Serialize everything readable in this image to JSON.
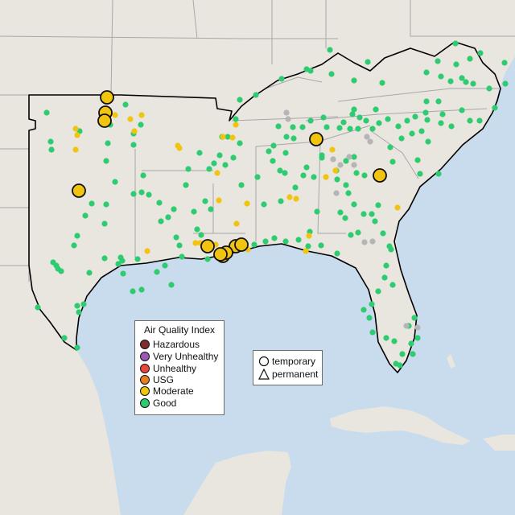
{
  "legend": {
    "title": "Air Quality Index",
    "items": [
      {
        "label": "Hazardous",
        "color": "#7e2d2d"
      },
      {
        "label": "Very Unhealthy",
        "color": "#9b59b6"
      },
      {
        "label": "Unhealthy",
        "color": "#e8473a"
      },
      {
        "label": "USG",
        "color": "#e67e22"
      },
      {
        "label": "Moderate",
        "color": "#f1c40f"
      },
      {
        "label": "Good",
        "color": "#2ecc71"
      }
    ]
  },
  "monitor_types": {
    "temporary": {
      "label": "temporary",
      "symbol": "circle-icon"
    },
    "permanent": {
      "label": "permanent",
      "symbol": "triangle-icon"
    }
  },
  "map_colors": {
    "water": "#c9dcee",
    "land": "#e9e5df",
    "region_outline": "#000000",
    "state_border": "#a8a8a8",
    "no_data": "#b5b5b5"
  }
}
